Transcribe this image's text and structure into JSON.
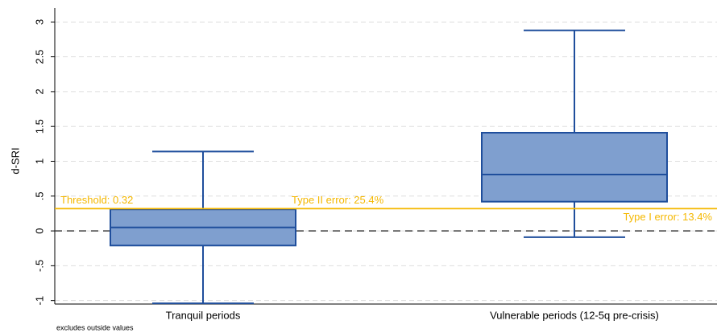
{
  "chart_data": {
    "type": "box",
    "y_label": "d-SRI",
    "note": "excludes outside values",
    "categories": [
      "Tranquil periods",
      "Vulnerable periods (12-5q pre-crisis)"
    ],
    "boxes": [
      {
        "low": -1.04,
        "q1": -0.21,
        "median": 0.05,
        "q3": 0.31,
        "high": 1.14
      },
      {
        "low": -0.09,
        "q1": 0.42,
        "median": 0.81,
        "q3": 1.41,
        "high": 2.88
      }
    ],
    "box_color": "#7f9fcf",
    "line_color": "#1f4e9c",
    "threshold": {
      "value": 0.32,
      "label": "Threshold: 0.32",
      "color": "#f5b800"
    },
    "reference_line": {
      "value": 0,
      "style": "dashed"
    },
    "annotations": [
      "Type II error: 25.4%",
      "Type I error: 13.4%"
    ],
    "ylim": [
      -1.05,
      3.2
    ],
    "yticks": [
      -1,
      {
        "value": -0.5,
        "label": "-.5"
      },
      0,
      {
        "value": 0.5,
        "label": ".5"
      },
      1,
      1.5,
      2,
      2.5,
      3
    ],
    "grid": true
  }
}
